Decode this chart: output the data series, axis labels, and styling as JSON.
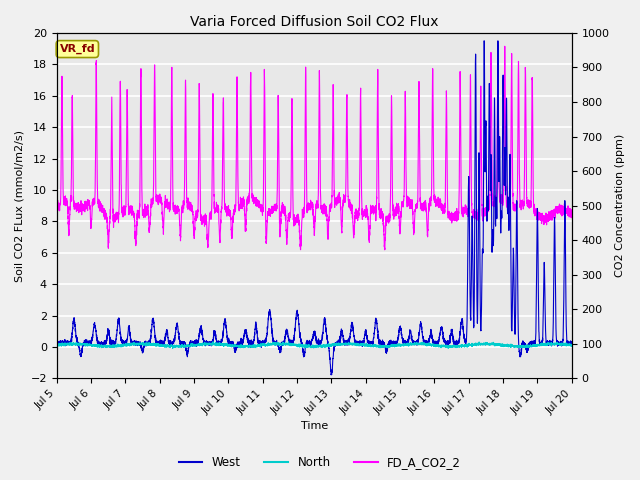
{
  "title": "Varia Forced Diffusion Soil CO2 Flux",
  "xlabel": "Time",
  "ylabel_left": "Soil CO2 FLux (mmol/m2/s)",
  "ylabel_right": "CO2 Concentration (ppm)",
  "ylim_left": [
    -2,
    20
  ],
  "ylim_right": [
    0,
    1000
  ],
  "color_west": "#0000cc",
  "color_north": "#00cccc",
  "color_fd": "#ff00ff",
  "annotation_text": "VR_fd",
  "annotation_color": "#880000",
  "annotation_bg": "#ffff99",
  "annotation_border": "#999900",
  "legend_labels": [
    "West",
    "North",
    "FD_A_CO2_2"
  ],
  "x_tick_days": [
    5,
    6,
    7,
    8,
    9,
    10,
    11,
    12,
    13,
    14,
    15,
    16,
    17,
    18,
    19,
    20
  ],
  "x_tick_labels": [
    "Jul 5",
    "Jul 6",
    "Jul 7",
    "Jul 8",
    "Jul 9",
    "Jul 10",
    "Jul 11",
    "Jul 12",
    "Jul 13",
    "Jul 14",
    "Jul 15",
    "Jul 16",
    "Jul 17",
    "Jul 18",
    "Jul 19",
    "Jul 20"
  ]
}
